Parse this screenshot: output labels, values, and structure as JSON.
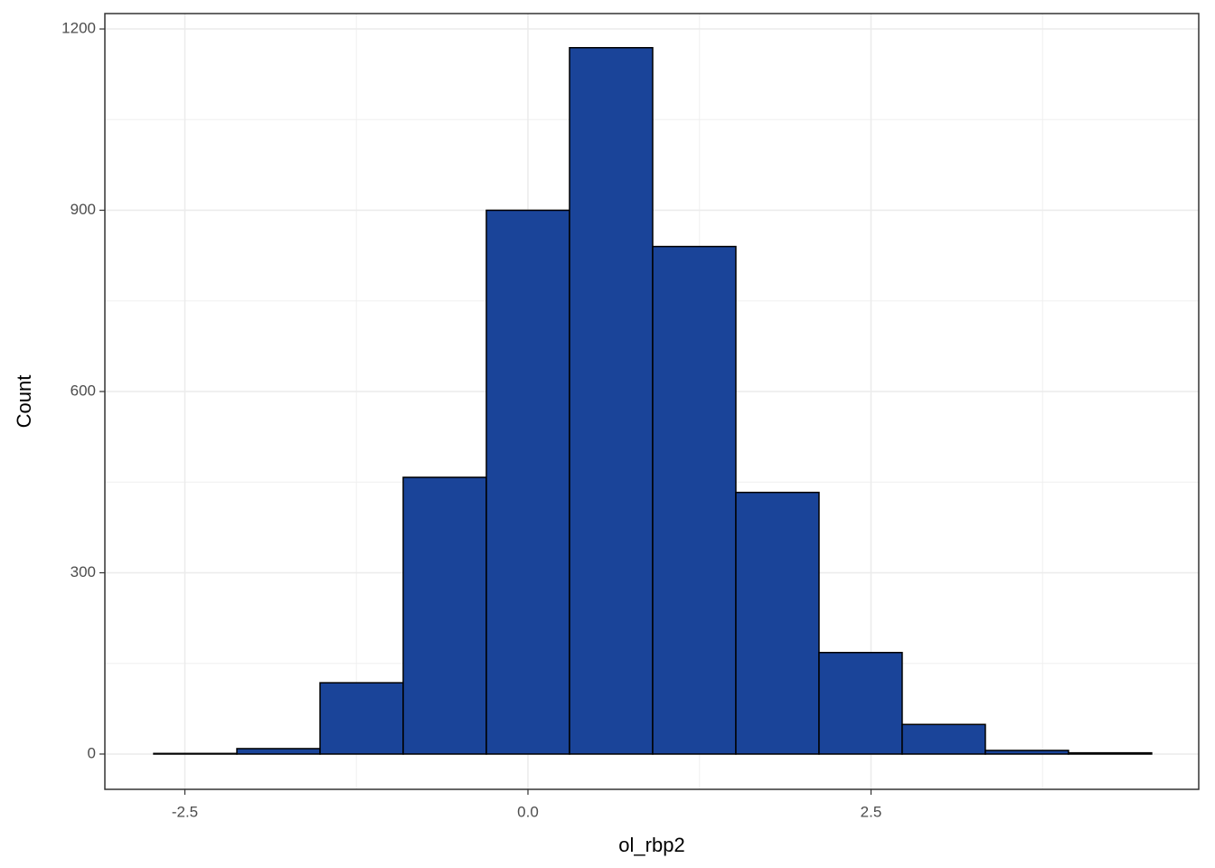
{
  "chart_data": {
    "type": "histogram",
    "x_label": "ol_rbp2",
    "y_label": "Count",
    "bins": [
      -2.727,
      -2.121,
      -1.515,
      -0.909,
      -0.303,
      0.303,
      0.909,
      1.515,
      2.121,
      2.727,
      3.333,
      3.939,
      4.545
    ],
    "values": [
      1,
      9,
      118,
      458,
      900,
      1169,
      840,
      433,
      168,
      49,
      6,
      2
    ],
    "color": "#1a4499",
    "edge_color": "#000000",
    "xlim": [
      -3.083,
      4.888
    ],
    "ylim": [
      -58.4,
      1225.5
    ],
    "xticks": [
      -2.5,
      {
        "value": 0,
        "label": "0.0"
      },
      2.5
    ],
    "yticks": [
      0,
      300,
      600,
      900,
      1200
    ],
    "x_minor_grid": [
      -1.25,
      1.25,
      3.75
    ],
    "y_minor_grid": [
      150,
      450,
      750,
      1050
    ],
    "grid": true
  }
}
